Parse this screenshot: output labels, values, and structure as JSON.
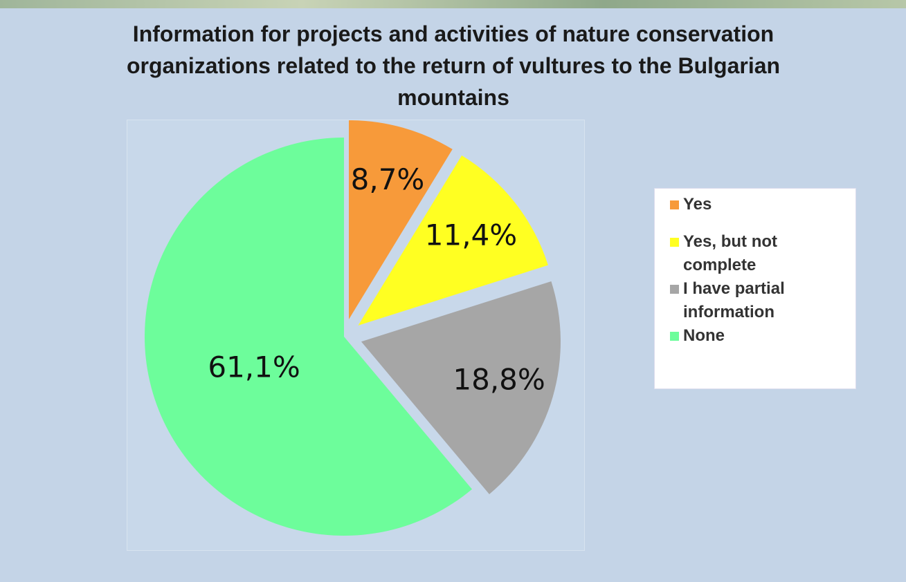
{
  "chart_data": {
    "type": "pie",
    "title": "Information for projects and activities of nature conservation organizations related to the return of vultures to the Bulgarian mountains",
    "categories": [
      "Yes",
      "Yes, but not complete",
      "I have partial information",
      "None"
    ],
    "values": [
      8.7,
      11.4,
      18.8,
      61.1
    ],
    "value_labels": [
      "8,7%",
      "11,4%",
      "18,8%",
      "61,1%"
    ],
    "colors": [
      "#f79a3a",
      "#ffff22",
      "#a6a6a6",
      "#6dfd9b"
    ],
    "legend": "right"
  }
}
